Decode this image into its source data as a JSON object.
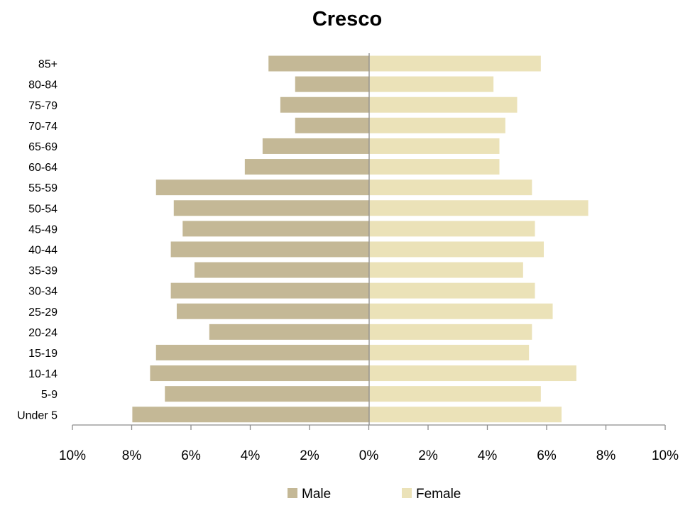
{
  "chart_data": {
    "type": "bar",
    "orientation": "horizontal",
    "title": "Cresco",
    "categories": [
      "Under 5",
      "5-9",
      "10-14",
      "15-19",
      "20-24",
      "25-29",
      "30-34",
      "35-39",
      "40-44",
      "45-49",
      "50-54",
      "55-59",
      "60-64",
      "65-69",
      "70-74",
      "75-79",
      "80-84",
      "85+"
    ],
    "series": [
      {
        "name": "Male",
        "color": "#c4b896",
        "values": [
          8.0,
          6.9,
          7.4,
          7.2,
          5.4,
          6.5,
          6.7,
          5.9,
          6.7,
          6.3,
          6.6,
          7.2,
          4.2,
          3.6,
          2.5,
          3.0,
          2.5,
          3.4
        ]
      },
      {
        "name": "Female",
        "color": "#ebe2b8",
        "values": [
          6.5,
          5.8,
          7.0,
          5.4,
          5.5,
          6.2,
          5.6,
          5.2,
          5.9,
          5.6,
          7.4,
          5.5,
          4.4,
          4.4,
          4.6,
          5.0,
          4.2,
          5.8
        ]
      }
    ],
    "xlim": [
      -10,
      10
    ],
    "x_ticks": [
      "10%",
      "8%",
      "6%",
      "4%",
      "2%",
      "0%",
      "2%",
      "4%",
      "6%",
      "8%",
      "10%"
    ],
    "grid": false,
    "legend_position": "bottom"
  }
}
